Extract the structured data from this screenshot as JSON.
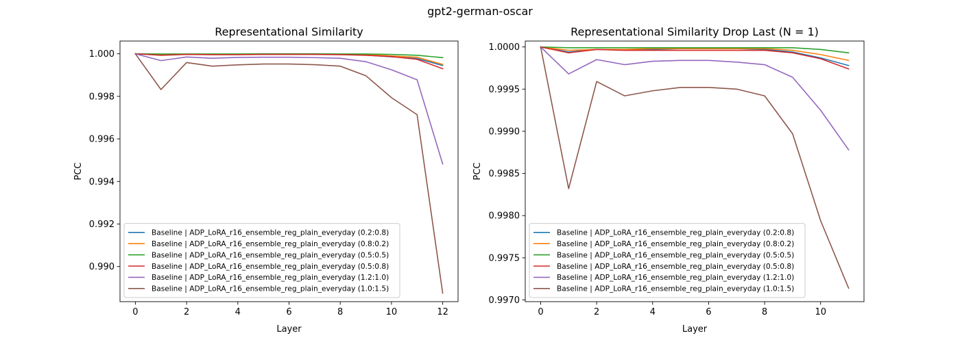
{
  "figure_title": "gpt2-german-oscar",
  "chart_data": [
    {
      "type": "line",
      "title": "Representational Similarity",
      "xlabel": "Layer",
      "ylabel": "PCC",
      "xlim": [
        -0.6,
        12.6
      ],
      "ylim": [
        0.98835,
        1.0006
      ],
      "xticks": [
        0,
        2,
        4,
        6,
        8,
        10,
        12
      ],
      "xtick_labels": [
        "0",
        "2",
        "4",
        "6",
        "8",
        "10",
        "12"
      ],
      "yticks": [
        0.99,
        0.992,
        0.994,
        0.996,
        0.998,
        1.0
      ],
      "ytick_labels": [
        "0.990",
        "0.992",
        "0.994",
        "0.996",
        "0.998",
        "1.000"
      ],
      "grid": false,
      "legend_position": "lower-left",
      "x": [
        0,
        1,
        2,
        3,
        4,
        5,
        6,
        7,
        8,
        9,
        10,
        11,
        12
      ],
      "series": [
        {
          "name": "Baseline | ADP_LoRA_r16_ensemble_reg_plain_everyday (0.2:0.8)",
          "color": "#1f77b4",
          "values": [
            1.0,
            0.99996,
            0.99997,
            0.99997,
            0.99998,
            0.99998,
            0.99998,
            0.99998,
            0.99997,
            0.99994,
            0.99986,
            0.99978,
            0.99945
          ]
        },
        {
          "name": "Baseline | ADP_LoRA_r16_ensemble_reg_plain_everyday (0.8:0.2)",
          "color": "#ff7f0e",
          "values": [
            1.0,
            0.99997,
            0.99997,
            0.99997,
            0.99998,
            0.99998,
            0.99998,
            0.99998,
            0.99998,
            0.99996,
            0.9999,
            0.99984,
            0.9995
          ]
        },
        {
          "name": "Baseline | ADP_LoRA_r16_ensemble_reg_plain_everyday (0.5:0.5)",
          "color": "#2ca02c",
          "values": [
            1.0,
            0.99999,
            0.99999,
            0.99999,
            0.99999,
            1.0,
            1.0,
            1.0,
            0.99999,
            0.99999,
            0.99997,
            0.99993,
            0.99982
          ]
        },
        {
          "name": "Baseline | ADP_LoRA_r16_ensemble_reg_plain_everyday (0.5:0.8)",
          "color": "#d62728",
          "values": [
            1.0,
            0.99993,
            0.99997,
            0.99996,
            0.99996,
            0.99997,
            0.99997,
            0.99997,
            0.99996,
            0.99993,
            0.99987,
            0.99974,
            0.9993
          ]
        },
        {
          "name": "Baseline | ADP_LoRA_r16_ensemble_reg_plain_everyday (1.2:1.0)",
          "color": "#9467bd",
          "values": [
            1.0,
            0.99968,
            0.99985,
            0.99979,
            0.99983,
            0.99984,
            0.99984,
            0.99982,
            0.99979,
            0.99963,
            0.99925,
            0.99878,
            0.99482
          ]
        },
        {
          "name": "Baseline | ADP_LoRA_r16_ensemble_reg_plain_everyday (1.0:1.5)",
          "color": "#8c564b",
          "values": [
            1.0,
            0.99832,
            0.99959,
            0.99942,
            0.99948,
            0.99952,
            0.99952,
            0.99949,
            0.99942,
            0.99897,
            0.99794,
            0.99714,
            0.98875
          ]
        }
      ]
    },
    {
      "type": "line",
      "title": "Representational Similarity Drop Last (N = 1)",
      "xlabel": "Layer",
      "ylabel": "PCC",
      "xlim": [
        -0.55,
        11.55
      ],
      "ylim": [
        0.99698,
        1.00007
      ],
      "xticks": [
        0,
        2,
        4,
        6,
        8,
        10
      ],
      "xtick_labels": [
        "0",
        "2",
        "4",
        "6",
        "8",
        "10"
      ],
      "yticks": [
        0.997,
        0.9975,
        0.998,
        0.9985,
        0.999,
        0.9995,
        1.0
      ],
      "ytick_labels": [
        "0.9970",
        "0.9975",
        "0.9980",
        "0.9985",
        "0.9990",
        "0.9995",
        "1.0000"
      ],
      "grid": false,
      "legend_position": "lower-left",
      "x": [
        0,
        1,
        2,
        3,
        4,
        5,
        6,
        7,
        8,
        9,
        10,
        11
      ],
      "series": [
        {
          "name": "Baseline | ADP_LoRA_r16_ensemble_reg_plain_everyday (0.2:0.8)",
          "color": "#1f77b4",
          "values": [
            1.0,
            0.99994,
            0.99997,
            0.99997,
            0.99997,
            0.99998,
            0.99998,
            0.99998,
            0.99997,
            0.99994,
            0.99987,
            0.99978
          ]
        },
        {
          "name": "Baseline | ADP_LoRA_r16_ensemble_reg_plain_everyday (0.8:0.2)",
          "color": "#ff7f0e",
          "values": [
            1.0,
            0.99996,
            0.99997,
            0.99997,
            0.99998,
            0.99998,
            0.99998,
            0.99998,
            0.99998,
            0.99996,
            0.99991,
            0.99984
          ]
        },
        {
          "name": "Baseline | ADP_LoRA_r16_ensemble_reg_plain_everyday (0.5:0.5)",
          "color": "#2ca02c",
          "values": [
            1.0,
            0.99999,
            0.99999,
            0.99999,
            0.99999,
            0.99999,
            0.99999,
            0.99999,
            0.99999,
            0.99999,
            0.99997,
            0.99993
          ]
        },
        {
          "name": "Baseline | ADP_LoRA_r16_ensemble_reg_plain_everyday (0.5:0.8)",
          "color": "#d62728",
          "values": [
            1.0,
            0.99993,
            0.99997,
            0.99996,
            0.99996,
            0.99996,
            0.99996,
            0.99996,
            0.99996,
            0.99993,
            0.99986,
            0.99974
          ]
        },
        {
          "name": "Baseline | ADP_LoRA_r16_ensemble_reg_plain_everyday (1.2:1.0)",
          "color": "#9467bd",
          "values": [
            1.0,
            0.99968,
            0.99985,
            0.99979,
            0.99983,
            0.99984,
            0.99984,
            0.99982,
            0.99979,
            0.99964,
            0.99925,
            0.99878
          ]
        },
        {
          "name": "Baseline | ADP_LoRA_r16_ensemble_reg_plain_everyday (1.0:1.5)",
          "color": "#8c564b",
          "values": [
            1.0,
            0.99832,
            0.99959,
            0.99942,
            0.99948,
            0.99952,
            0.99952,
            0.9995,
            0.99942,
            0.99897,
            0.99794,
            0.99714
          ]
        }
      ]
    }
  ]
}
